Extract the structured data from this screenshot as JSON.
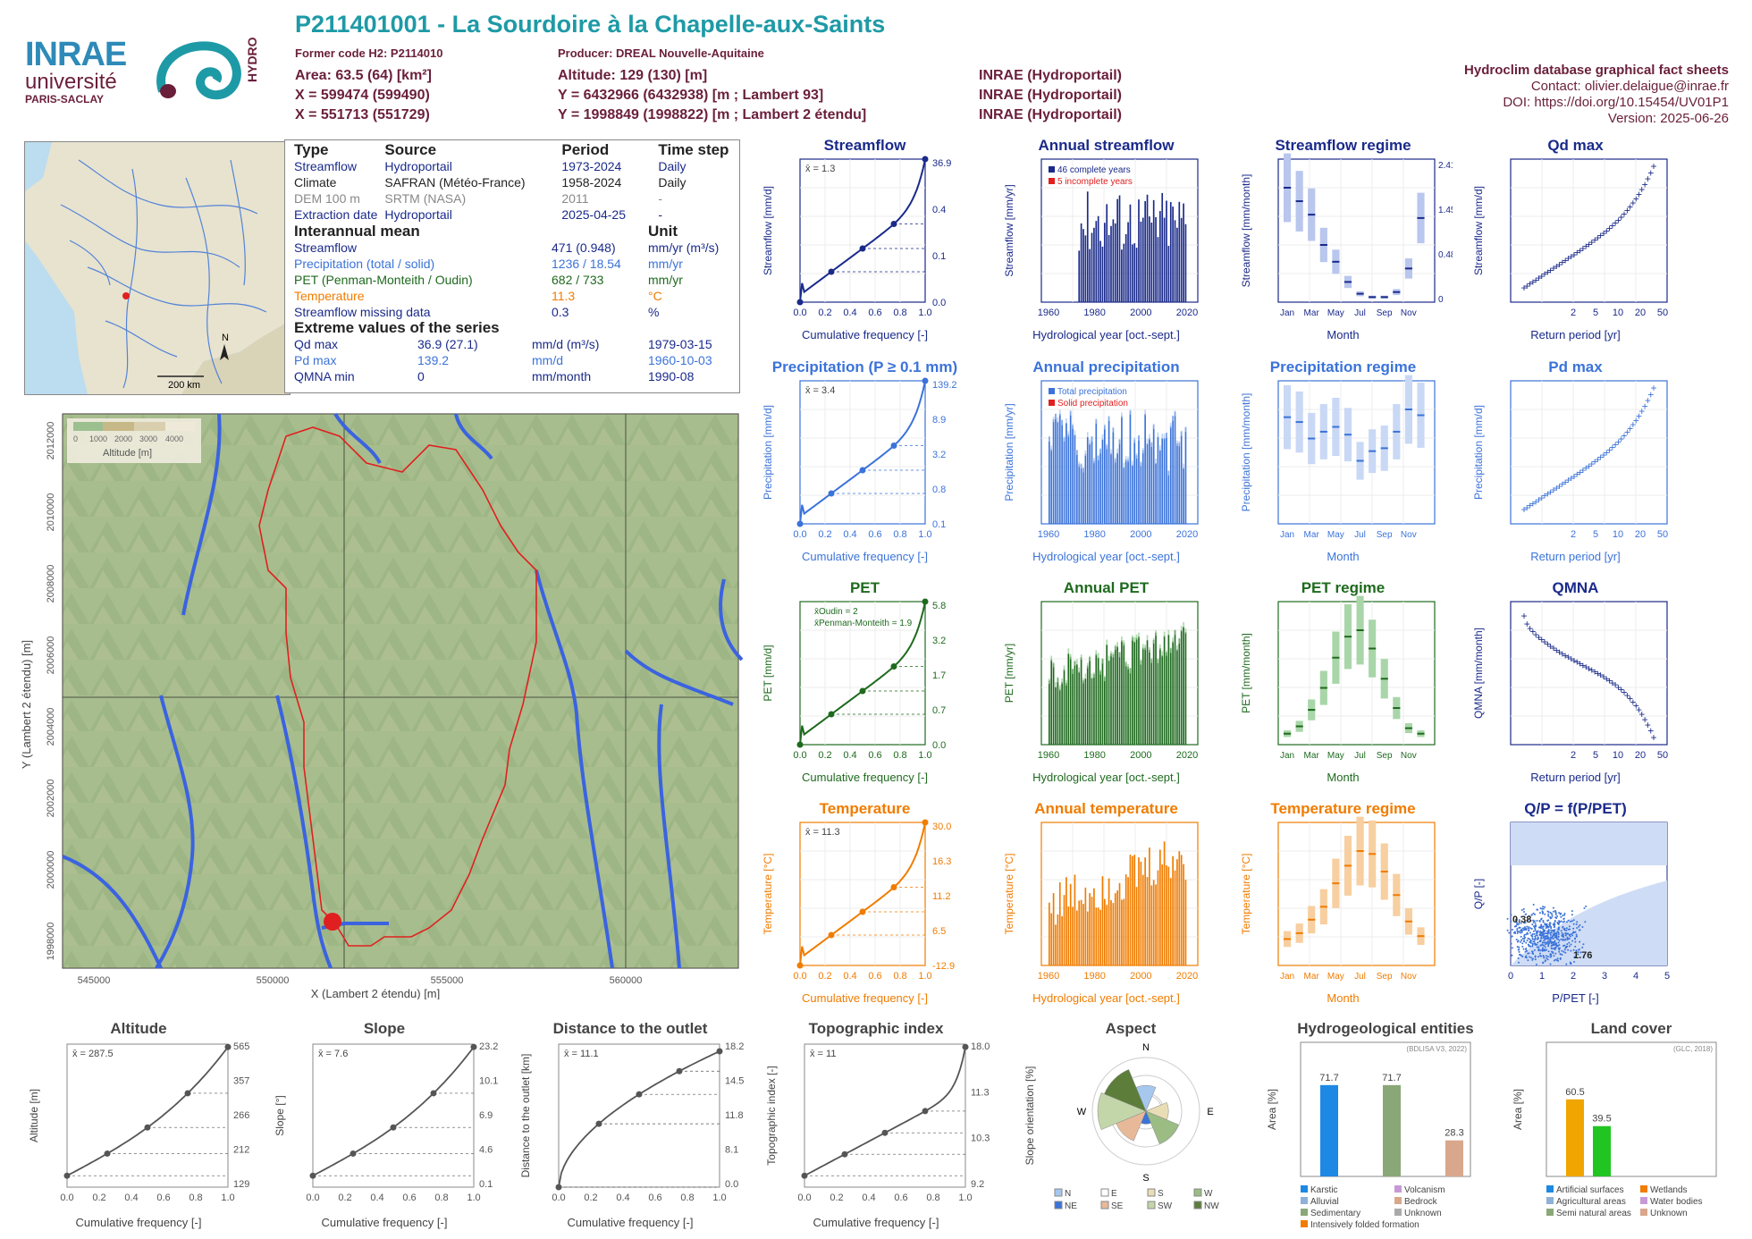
{
  "header": {
    "title": "P211401001 - La Sourdoire à la Chapelle-aux-Saints",
    "former_code": "Former code H2: P2114010",
    "producer": "Producer: DREAL Nouvelle-Aquitaine",
    "area": "Area: 63.5 (64) [km²]",
    "altitude": "Altitude: 129 (130) [m]",
    "x93": "X = 599474 (599490)",
    "y93": "Y = 6432966 (6432938) [m ; Lambert 93]",
    "x2": "X = 551713 (551729)",
    "y2": "Y = 1998849 (1998822) [m ; Lambert 2 étendu]",
    "src1": "INRAE (Hydroportail)",
    "src2": "INRAE (Hydroportail)",
    "src3": "INRAE (Hydroportail)",
    "logo_inrae": "INRAE",
    "logo_univ": "université",
    "logo_paris": "PARIS-SACLAY",
    "logo_hydro": "HYDRO"
  },
  "factsheet": {
    "name": "Hydroclim database graphical fact sheets",
    "contact": "Contact: olivier.delaigue@inrae.fr",
    "doi": "DOI: https://doi.org/10.15454/UV01P1",
    "version": "Version: 2025-06-26"
  },
  "info_table": {
    "headers": [
      "Type",
      "Source",
      "Period",
      "Time step"
    ],
    "rows": [
      [
        "Streamflow",
        "Hydroportail",
        "1973-2024",
        "Daily"
      ],
      [
        "Climate",
        "SAFRAN (Météo-France)",
        "1958-2024",
        "Daily"
      ],
      [
        "DEM 100 m",
        "SRTM (NASA)",
        "2011",
        "-"
      ],
      [
        "Extraction date",
        "Hydroportail",
        "2025-04-25",
        "-"
      ]
    ],
    "interannual_title": "Interannual mean",
    "unit_title": "Unit",
    "interannual": [
      [
        "Streamflow",
        "471 (0.948)",
        "mm/yr (m³/s)"
      ],
      [
        "Precipitation (total / solid)",
        "1236 / 18.54",
        "mm/yr"
      ],
      [
        "PET (Penman-Monteith / Oudin)",
        "682 / 733",
        "mm/yr"
      ],
      [
        "Temperature",
        "11.3",
        "°C"
      ],
      [
        "Streamflow missing data",
        "0.3",
        "%"
      ]
    ],
    "extreme_title": "Extreme values of the series",
    "extremes": [
      [
        "Qd max",
        "36.9 (27.1)",
        "mm/d (m³/s)",
        "1979-03-15"
      ],
      [
        "Pd max",
        "139.2",
        "mm/d",
        "1960-10-03"
      ],
      [
        "QMNA min",
        "0",
        "mm/month",
        "1990-08"
      ]
    ]
  },
  "locator_map": {
    "scale": "200 km",
    "north": "N"
  },
  "main_map": {
    "xlabel": "X (Lambert 2 étendu) [m]",
    "ylabel": "Y (Lambert 2 étendu) [m]",
    "xticks": [
      "545000",
      "550000",
      "555000",
      "560000"
    ],
    "yticks": [
      "1998000",
      "2000000",
      "2002000",
      "2004000",
      "2006000",
      "2008000",
      "2010000",
      "2012000"
    ],
    "legend_title": "Altitude [m]",
    "legend_ticks": [
      "0",
      "1000",
      "2000",
      "3000",
      "4000"
    ]
  },
  "colors": {
    "flow": "#1a2a8a",
    "prec": "#3b73d9",
    "pet": "#1e6a1e",
    "temp": "#f07c00",
    "grey": "#555555"
  },
  "chart_data": [
    {
      "id": "streamflow",
      "type": "line",
      "title": "Streamflow",
      "xlabel": "Cumulative frequency [-]",
      "ylabel": "Streamflow [mm/d]",
      "log": true,
      "mean_label": "x̄ = 1.3",
      "right_ticks": [
        "36.9",
        "0.4",
        "0.1",
        "0.0"
      ],
      "points": [
        [
          0,
          0.01
        ],
        [
          0.02,
          0.05
        ],
        [
          0.1,
          0.12
        ],
        [
          0.25,
          0.18
        ],
        [
          0.5,
          0.3
        ],
        [
          0.75,
          0.5
        ],
        [
          0.95,
          0.9
        ],
        [
          1,
          36.9
        ]
      ]
    },
    {
      "id": "annual_streamflow",
      "type": "bar",
      "title": "Annual streamflow",
      "xlabel": "Hydrological year [oct.-sept.]",
      "ylabel": "Streamflow [mm/yr]",
      "ylim": [
        0,
        950
      ],
      "legend": [
        "46 complete years",
        "5 incomplete years"
      ],
      "x_ticks": [
        "1960",
        "1980",
        "2000",
        "2020"
      ]
    },
    {
      "id": "streamflow_regime",
      "type": "bar",
      "title": "Streamflow regime",
      "xlabel": "Month",
      "ylabel": "Streamflow [mm/month]",
      "months": [
        "Jan",
        "Mar",
        "May",
        "Jul",
        "Sep",
        "Nov"
      ],
      "right_ticks": [
        "2.41",
        "1.45",
        "0.48",
        "0"
      ],
      "medians": [
        68,
        60,
        52,
        34,
        24,
        12,
        5,
        3,
        3,
        6,
        20,
        50
      ]
    },
    {
      "id": "qd_max",
      "type": "scatter",
      "title": "Qd max",
      "xlabel": "Return period [yr]",
      "ylabel": "Streamflow [mm/d]",
      "x_ticks": [
        "2",
        "5",
        "10",
        "20",
        "50"
      ]
    },
    {
      "id": "precipitation",
      "type": "line",
      "title": "Precipitation (P ≥ 0.1 mm)",
      "xlabel": "Cumulative frequency [-]",
      "ylabel": "Precipitation [mm/d]",
      "mean_label": "x̄ = 3.4",
      "right_ticks": [
        "139.2",
        "8.9",
        "3.2",
        "0.8",
        "0.1"
      ]
    },
    {
      "id": "annual_precipitation",
      "type": "bar",
      "title": "Annual precipitation",
      "xlabel": "Hydrological year [oct.-sept.]",
      "ylabel": "Precipitation [mm/yr]",
      "legend": [
        "Total precipitation",
        "Solid precipitation"
      ],
      "x_ticks": [
        "1960",
        "1980",
        "2000",
        "2020"
      ]
    },
    {
      "id": "precipitation_regime",
      "type": "bar",
      "title": "Precipitation regime",
      "xlabel": "Month",
      "ylabel": "Precipitation [mm/month]",
      "months": [
        "Jan",
        "Mar",
        "May",
        "Jul",
        "Sep",
        "Nov"
      ],
      "medians": [
        110,
        105,
        88,
        95,
        100,
        92,
        65,
        75,
        78,
        95,
        118,
        112
      ]
    },
    {
      "id": "pd_max",
      "type": "scatter",
      "title": "Pd max",
      "xlabel": "Return period [yr]",
      "ylabel": "Precipitation [mm/d]",
      "x_ticks": [
        "2",
        "5",
        "10",
        "20",
        "50"
      ]
    },
    {
      "id": "pet",
      "type": "line",
      "title": "PET",
      "xlabel": "Cumulative frequency [-]",
      "ylabel": "PET [mm/d]",
      "legend": [
        "x̄Oudin = 2",
        "x̄Penman-Monteith = 1.9"
      ],
      "right_ticks": [
        "5.8",
        "3.2",
        "1.7",
        "0.7",
        "0.0"
      ]
    },
    {
      "id": "annual_pet",
      "type": "bar",
      "title": "Annual PET",
      "xlabel": "Hydrological year [oct.-sept.]",
      "ylabel": "PET [mm/yr]",
      "x_ticks": [
        "1960",
        "1980",
        "2000",
        "2020"
      ]
    },
    {
      "id": "pet_regime",
      "type": "bar",
      "title": "PET regime",
      "xlabel": "Month",
      "ylabel": "PET [mm/month]",
      "months": [
        "Jan",
        "Mar",
        "May",
        "Jul",
        "Sep",
        "Nov"
      ],
      "medians": [
        12,
        20,
        38,
        62,
        95,
        118,
        125,
        105,
        72,
        40,
        18,
        12
      ]
    },
    {
      "id": "qmna",
      "type": "scatter",
      "title": "QMNA",
      "xlabel": "Return period [yr]",
      "ylabel": "QMNA [mm/month]",
      "x_ticks": [
        "2",
        "5",
        "10",
        "20",
        "50"
      ]
    },
    {
      "id": "temperature",
      "type": "line",
      "title": "Temperature",
      "xlabel": "Cumulative frequency [-]",
      "ylabel": "Temperature [°C]",
      "mean_label": "x̄ = 11.3",
      "right_ticks": [
        "30.0",
        "16.3",
        "11.2",
        "6.5",
        "-12.9"
      ]
    },
    {
      "id": "annual_temperature",
      "type": "bar",
      "title": "Annual temperature",
      "xlabel": "Hydrological year [oct.-sept.]",
      "ylabel": "Temperature [°C]",
      "x_ticks": [
        "1960",
        "1980",
        "2000",
        "2020"
      ]
    },
    {
      "id": "temperature_regime",
      "type": "bar",
      "title": "Temperature regime",
      "xlabel": "Month",
      "ylabel": "Temperature [°C]",
      "months": [
        "Jan",
        "Mar",
        "May",
        "Jul",
        "Sep",
        "Nov"
      ],
      "medians": [
        4.5,
        5.5,
        7.8,
        10,
        14,
        17,
        19.5,
        19,
        16,
        12,
        7.5,
        5
      ]
    },
    {
      "id": "q_p",
      "type": "scatter",
      "title": "Q/P = f(P/PET)",
      "xlabel": "P/PET [-]",
      "ylabel": "Q/P [-]",
      "annot1": "0.38",
      "annot2": "1.76"
    },
    {
      "id": "altitude",
      "type": "line",
      "title": "Altitude",
      "xlabel": "Cumulative frequency [-]",
      "ylabel": "Altitude [m]",
      "mean_label": "x̄ = 287.5",
      "right_ticks": [
        "565",
        "357",
        "266",
        "212",
        "129"
      ]
    },
    {
      "id": "slope",
      "type": "line",
      "title": "Slope",
      "xlabel": "Cumulative frequency [-]",
      "ylabel": "Slope [°]",
      "mean_label": "x̄ = 7.6",
      "right_ticks": [
        "23.2",
        "10.1",
        "6.9",
        "4.6",
        "0.1"
      ]
    },
    {
      "id": "distance",
      "type": "line",
      "title": "Distance to the outlet",
      "xlabel": "Cumulative frequency [-]",
      "ylabel": "Distance to the outlet [km]",
      "mean_label": "x̄ = 11.1",
      "right_ticks": [
        "18.2",
        "14.5",
        "11.8",
        "8.1",
        "0.0"
      ]
    },
    {
      "id": "topo_index",
      "type": "line",
      "title": "Topographic index",
      "xlabel": "Cumulative frequency [-]",
      "ylabel": "Topographic index [-]",
      "mean_label": "x̄ = 11",
      "right_ticks": [
        "18.0",
        "11.3",
        "10.3",
        "9.2"
      ]
    },
    {
      "id": "aspect",
      "type": "pie",
      "title": "Aspect",
      "ylabel": "Slope orientation [%]",
      "legend": [
        "N",
        "E",
        "S",
        "W",
        "NE",
        "SE",
        "SW",
        "NW"
      ]
    },
    {
      "id": "hydrogeology",
      "type": "bar",
      "title": "Hydrogeological entities",
      "ylabel": "Area [%]",
      "source": "(BDLISA V3, 2022)",
      "values": [
        71.7,
        71.7,
        28.3
      ],
      "legend": [
        "Karstic",
        "Alluvial",
        "Sedimentary",
        "Intensively folded formation",
        "Volcanism",
        "Bedrock",
        "Unknown"
      ]
    },
    {
      "id": "landcover",
      "type": "bar",
      "title": "Land cover",
      "ylabel": "Area [%]",
      "source": "(GLC, 2018)",
      "values": [
        60.5,
        39.5
      ],
      "legend": [
        "Artificial surfaces",
        "Agricultural areas",
        "Semi natural areas",
        "Wetlands",
        "Water bodies",
        "Unknown"
      ]
    }
  ]
}
